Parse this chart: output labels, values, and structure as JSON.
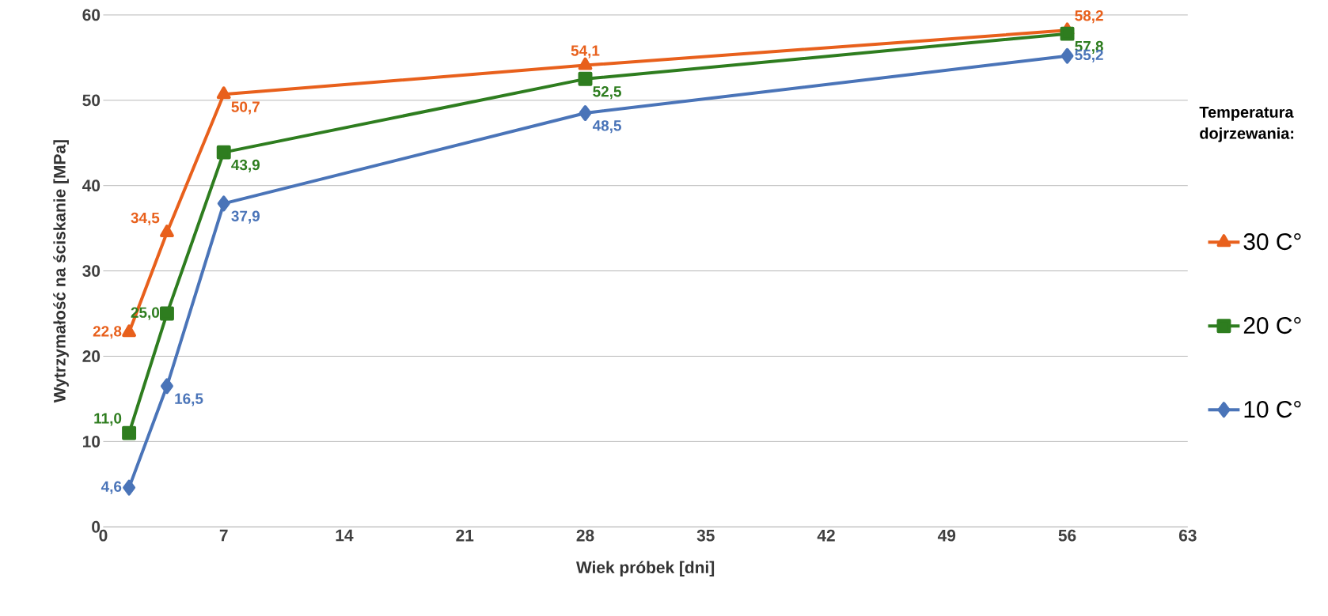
{
  "chart_data": {
    "type": "line",
    "xlabel": "Wiek próbek [dni]",
    "ylabel": "Wytrzymałość na ściskanie [MPa]",
    "legend_title": "Temperatura dojrzewania:",
    "x": [
      1.5,
      3.7,
      7,
      28,
      56
    ],
    "series": [
      {
        "name": "30 C°",
        "color": "#e8601c",
        "marker": "triangle",
        "values": [
          22.8,
          34.5,
          50.7,
          54.1,
          58.2
        ],
        "value_labels": [
          "22,8",
          "34,5",
          "50,7",
          "54,1",
          "58,2"
        ]
      },
      {
        "name": "20 C°",
        "color": "#2e7d1f",
        "marker": "square",
        "values": [
          11.0,
          25.0,
          43.9,
          52.5,
          57.8
        ],
        "value_labels": [
          "11,0",
          "25,0",
          "43,9",
          "52,5",
          "57,8"
        ]
      },
      {
        "name": "10 C°",
        "color": "#4a74b8",
        "marker": "diamond",
        "values": [
          4.6,
          16.5,
          37.9,
          48.5,
          55.2
        ],
        "value_labels": [
          "4,6",
          "16,5",
          "37,9",
          "48,5",
          "55,2"
        ]
      }
    ],
    "xlim": [
      0,
      63
    ],
    "xticks": [
      0,
      7,
      14,
      21,
      28,
      35,
      42,
      49,
      56,
      63
    ],
    "ylim": [
      0,
      60
    ],
    "yticks": [
      0,
      10,
      20,
      30,
      40,
      50,
      60
    ],
    "grid": "y",
    "legend": "right",
    "line_style": "solid"
  }
}
